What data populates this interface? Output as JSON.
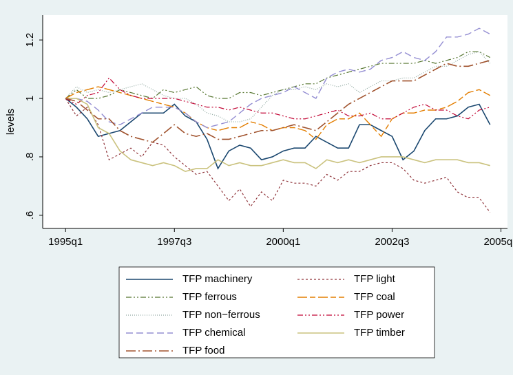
{
  "chart_data": {
    "type": "line",
    "y_label": "levels",
    "x": [
      140,
      141,
      142,
      143,
      144,
      145,
      146,
      147,
      148,
      149,
      150,
      151,
      152,
      153,
      154,
      155,
      156,
      157,
      158,
      159,
      160,
      161,
      162,
      163,
      164,
      165,
      166,
      167,
      168,
      169,
      170,
      171,
      172,
      173,
      174,
      175,
      176,
      177,
      178,
      179
    ],
    "xlim": [
      137.9,
      180.6
    ],
    "xticks": [
      {
        "value": 140,
        "label": "1995q1"
      },
      {
        "value": 150,
        "label": "1997q3"
      },
      {
        "value": 160,
        "label": "2000q1"
      },
      {
        "value": 170,
        "label": "2002q3"
      },
      {
        "value": 180,
        "label": "2005q1"
      }
    ],
    "ylim": [
      0.555,
      1.285
    ],
    "yticks": [
      {
        "value": 0.6,
        "label": ".6"
      },
      {
        "value": 0.8,
        "label": ".8"
      },
      1,
      1.2
    ],
    "grid": false,
    "legend": "bottom",
    "series": [
      {
        "name": "TFP machinery",
        "color": "#1a476f",
        "values": [
          1,
          0.97,
          0.93,
          0.87,
          0.88,
          0.89,
          0.92,
          0.95,
          0.95,
          0.95,
          0.98,
          0.94,
          0.92,
          0.86,
          0.76,
          0.82,
          0.84,
          0.83,
          0.79,
          0.8,
          0.82,
          0.83,
          0.83,
          0.87,
          0.85,
          0.83,
          0.83,
          0.91,
          0.91,
          0.89,
          0.87,
          0.79,
          0.82,
          0.89,
          0.93,
          0.93,
          0.94,
          0.97,
          0.98,
          0.91
        ]
      },
      {
        "name": "TFP light",
        "color": "#90353b",
        "values": [
          1,
          0.94,
          0.97,
          0.91,
          0.79,
          0.81,
          0.83,
          0.8,
          0.85,
          0.84,
          0.8,
          0.77,
          0.74,
          0.75,
          0.7,
          0.65,
          0.69,
          0.63,
          0.68,
          0.65,
          0.72,
          0.71,
          0.71,
          0.7,
          0.74,
          0.72,
          0.75,
          0.75,
          0.77,
          0.78,
          0.78,
          0.76,
          0.72,
          0.71,
          0.72,
          0.73,
          0.68,
          0.66,
          0.66,
          0.61
        ]
      },
      {
        "name": "TFP ferrous",
        "color": "#55752f",
        "values": [
          1,
          1.03,
          1.0,
          1.0,
          1.01,
          1.03,
          1.02,
          1.01,
          1.0,
          1.03,
          1.02,
          1.03,
          1.04,
          1.01,
          1.0,
          1.0,
          1.02,
          1.02,
          1.01,
          1.02,
          1.03,
          1.04,
          1.05,
          1.05,
          1.07,
          1.08,
          1.09,
          1.1,
          1.11,
          1.12,
          1.12,
          1.12,
          1.12,
          1.13,
          1.12,
          1.13,
          1.14,
          1.16,
          1.16,
          1.14
        ]
      },
      {
        "name": "TFP coal",
        "color": "#e37e00",
        "values": [
          1,
          1.02,
          1.03,
          1.04,
          1.03,
          1.02,
          1.01,
          1.0,
          0.99,
          0.98,
          0.97,
          0.95,
          0.92,
          0.9,
          0.89,
          0.9,
          0.9,
          0.92,
          0.91,
          0.89,
          0.9,
          0.9,
          0.89,
          0.86,
          0.91,
          0.93,
          0.93,
          0.95,
          0.91,
          0.87,
          0.93,
          0.95,
          0.95,
          0.96,
          0.96,
          0.97,
          0.99,
          1.02,
          1.03,
          1.01
        ]
      },
      {
        "name": "TFP non−ferrous",
        "color": "#8fa8a0",
        "values": [
          1,
          1.04,
          1.02,
          1.03,
          1.02,
          1.03,
          1.04,
          1.05,
          1.03,
          1.01,
          1.0,
          1.0,
          0.98,
          0.95,
          0.94,
          0.92,
          0.92,
          0.93,
          0.97,
          1.01,
          1.03,
          1.03,
          1.04,
          1.03,
          1.05,
          1.04,
          1.05,
          1.02,
          1.04,
          1.06,
          1.06,
          1.07,
          1.07,
          1.09,
          1.11,
          1.11,
          1.13,
          1.15,
          1.16,
          1.12
        ]
      },
      {
        "name": "TFP power",
        "color": "#c10534",
        "values": [
          1,
          0.98,
          1.01,
          1.02,
          1.07,
          1.03,
          1.01,
          1.0,
          1.0,
          1.0,
          1.0,
          0.99,
          0.98,
          0.97,
          0.97,
          0.96,
          0.97,
          0.96,
          0.95,
          0.95,
          0.94,
          0.93,
          0.93,
          0.94,
          0.95,
          0.96,
          0.94,
          0.94,
          0.95,
          0.93,
          0.93,
          0.95,
          0.97,
          0.98,
          0.96,
          0.96,
          0.94,
          0.93,
          0.96,
          0.97
        ]
      },
      {
        "name": "TFP chemical",
        "color": "#938dd2",
        "values": [
          1,
          1.0,
          0.99,
          0.96,
          0.92,
          0.91,
          0.93,
          0.95,
          0.97,
          0.97,
          0.97,
          0.95,
          0.92,
          0.9,
          0.91,
          0.92,
          0.95,
          0.98,
          1.0,
          1.01,
          1.02,
          1.04,
          1.02,
          1.0,
          1.07,
          1.09,
          1.1,
          1.09,
          1.1,
          1.13,
          1.14,
          1.16,
          1.14,
          1.13,
          1.16,
          1.21,
          1.21,
          1.22,
          1.24,
          1.22
        ]
      },
      {
        "name": "TFP timber",
        "color": "#cac27e",
        "values": [
          1,
          1.0,
          0.98,
          0.9,
          0.88,
          0.82,
          0.79,
          0.78,
          0.77,
          0.78,
          0.77,
          0.75,
          0.76,
          0.76,
          0.79,
          0.77,
          0.78,
          0.77,
          0.77,
          0.78,
          0.79,
          0.78,
          0.78,
          0.76,
          0.79,
          0.78,
          0.79,
          0.78,
          0.79,
          0.8,
          0.8,
          0.8,
          0.79,
          0.78,
          0.79,
          0.79,
          0.79,
          0.78,
          0.78,
          0.77
        ]
      },
      {
        "name": "TFP food",
        "color": "#a0522d",
        "values": [
          1,
          0.99,
          0.96,
          0.93,
          0.93,
          0.89,
          0.87,
          0.86,
          0.85,
          0.88,
          0.91,
          0.88,
          0.87,
          0.88,
          0.86,
          0.86,
          0.87,
          0.88,
          0.89,
          0.89,
          0.9,
          0.91,
          0.9,
          0.89,
          0.92,
          0.95,
          0.98,
          1.0,
          1.02,
          1.04,
          1.06,
          1.06,
          1.06,
          1.08,
          1.1,
          1.12,
          1.11,
          1.11,
          1.12,
          1.13
        ]
      }
    ]
  }
}
